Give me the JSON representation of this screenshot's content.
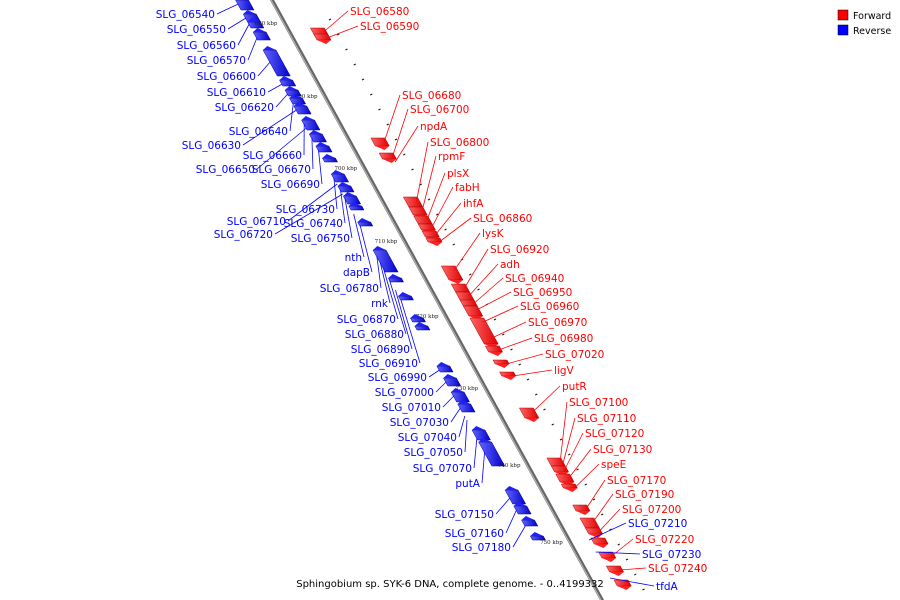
{
  "caption": "Sphingobium sp. SYK-6 DNA, complete genome. - 0..4199332",
  "legend": [
    {
      "label": "Forward",
      "color": "#ff0000"
    },
    {
      "label": "Reverse",
      "color": "#0000ff"
    }
  ],
  "colors": {
    "forward": "#ff0000",
    "reverse": "#0000ff",
    "axis": "#888888"
  },
  "kbp_ticks": [
    "680 kbp",
    "690 kbp",
    "700 kbp",
    "710 kbp",
    "720 kbp",
    "730 kbp",
    "740 kbp",
    "750 kbp"
  ],
  "forward_labels": [
    "SLG_06580",
    "SLG_06590",
    "SLG_06680",
    "SLG_06700",
    "npdA",
    "SLG_06800",
    "rpmF",
    "plsX",
    "fabH",
    "ihfA",
    "SLG_06860",
    "lysK",
    "SLG_06920",
    "adh",
    "SLG_06940",
    "SLG_06950",
    "SLG_06960",
    "SLG_06970",
    "SLG_06980",
    "SLG_07020",
    "ligV",
    "putR",
    "SLG_07100",
    "SLG_07110",
    "SLG_07120",
    "SLG_07130",
    "speE",
    "SLG_07170",
    "SLG_07190",
    "SLG_07200",
    "SLG_07220",
    "SLG_07240"
  ],
  "reverse_right_labels": [
    "SLG_07210",
    "SLG_07230",
    "tfdA"
  ],
  "reverse_labels": [
    "SLG_06540",
    "SLG_06550",
    "SLG_06560",
    "SLG_06570",
    "SLG_06600",
    "SLG_06610",
    "SLG_06620",
    "SLG_06640",
    "SLG_06630",
    "SLG_06660",
    "SLG_06650",
    "SLG_06670",
    "SLG_06690",
    "SLG_06730",
    "SLG_06710",
    "SLG_06740",
    "SLG_06720",
    "SLG_06750",
    "nth",
    "dapB",
    "SLG_06780",
    "rnk",
    "SLG_06870",
    "SLG_06880",
    "SLG_06890",
    "SLG_06910",
    "SLG_06990",
    "SLG_07000",
    "SLG_07010",
    "SLG_07030",
    "SLG_07040",
    "SLG_07050",
    "SLG_07070",
    "putA",
    "SLG_07150",
    "SLG_07160",
    "SLG_07180"
  ]
}
